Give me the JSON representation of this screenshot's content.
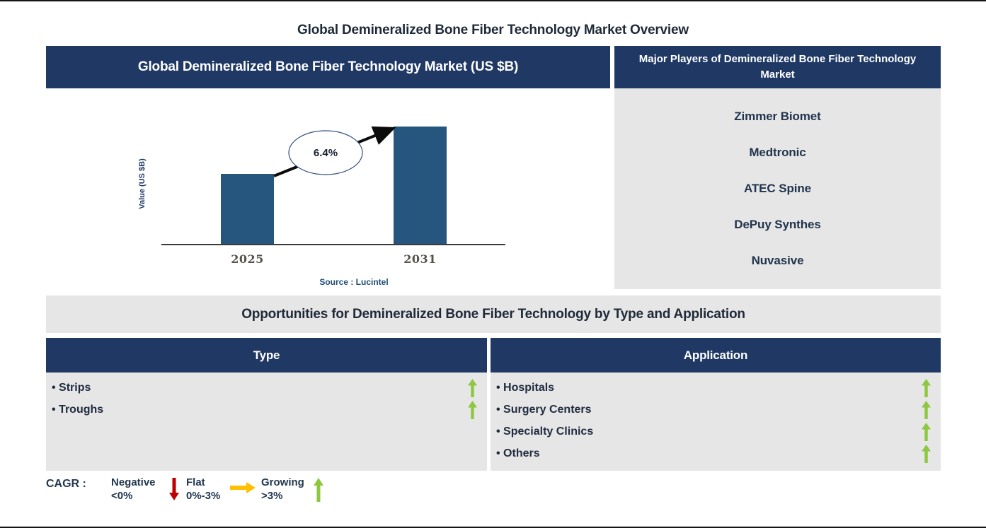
{
  "page": {
    "title": "Global Demineralized Bone Fiber Technology Market Overview"
  },
  "colors": {
    "navy_header": "#1F3864",
    "panel_gray": "#E7E6E6",
    "bar_blue": "#26567D",
    "growing_green": "#8DC63F",
    "negative_red": "#C00000",
    "flat_amber": "#FFC000",
    "source_blue": "#1F4E79",
    "year_label_gray": "#57534B"
  },
  "market_chart": {
    "header": "Global Demineralized Bone Fiber Technology Market (US $B)"
  },
  "chart_data": {
    "type": "bar",
    "title": "Global Demineralized Bone Fiber Technology Market (US $B)",
    "categories": [
      "2025",
      "2031"
    ],
    "values_relative": [
      0.6,
      1.0
    ],
    "axis_numeric_labels_shown": false,
    "cagr": "6.4%",
    "xlabel": "",
    "ylabel": "Value (US $B)",
    "source": "Source : Lucintel",
    "bar_color": "#26567D",
    "grid": false,
    "annotation": "CAGR arrow from 2025 bar to 2031 bar through 6.4% ellipse"
  },
  "major_players": {
    "header": "Major Players of Demineralized Bone Fiber Technology Market",
    "companies": [
      "Zimmer Biomet",
      "Medtronic",
      "ATEC Spine",
      "DePuy Synthes",
      "Nuvasive"
    ]
  },
  "opportunities": {
    "header": "Opportunities for Demineralized Bone Fiber Technology by Type and Application",
    "type_column": {
      "header": "Type",
      "items": [
        {
          "label": "Strips",
          "trend": "growing"
        },
        {
          "label": "Troughs",
          "trend": "growing"
        }
      ]
    },
    "application_column": {
      "header": "Application",
      "items": [
        {
          "label": "Hospitals",
          "trend": "growing"
        },
        {
          "label": "Surgery Centers",
          "trend": "growing"
        },
        {
          "label": "Specialty Clinics",
          "trend": "growing"
        },
        {
          "label": "Others",
          "trend": "growing"
        }
      ]
    }
  },
  "legend": {
    "label": "CAGR :",
    "items": [
      {
        "name": "Negative",
        "range": "<0%",
        "direction": "down",
        "color": "#C00000"
      },
      {
        "name": "Flat",
        "range": "0%-3%",
        "direction": "right",
        "color": "#FFC000"
      },
      {
        "name": "Growing",
        "range": ">3%",
        "direction": "up",
        "color": "#8DC63F"
      }
    ]
  }
}
